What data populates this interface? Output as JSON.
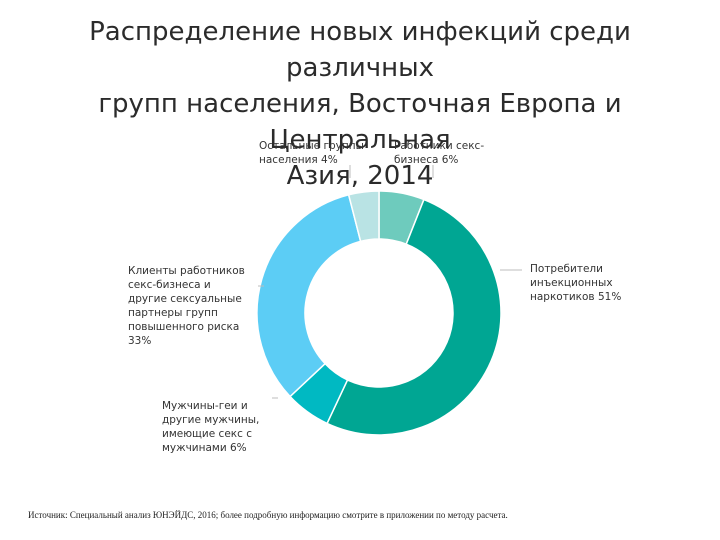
{
  "title_lines": [
    "Распределение новых инфекций среди различных",
    "групп населения, Восточная Европа и Центральная",
    "Азия, 2014"
  ],
  "chart_data": {
    "type": "pie",
    "donut": true,
    "title": "Распределение новых инфекций среди различных групп населения, Восточная Европа и Центральная Азия, 2014",
    "start_angle_deg": 0,
    "direction": "clockwise",
    "slices": [
      {
        "label": "Работники секс-\nбизнеса 6%",
        "value": 6,
        "color": "#6ecbbd"
      },
      {
        "label": "Потребители\nинъекционных\nнаркотиков 51%",
        "value": 51,
        "color": "#00a693"
      },
      {
        "label": "Мужчины-геи и\nдругие мужчины,\nимеющие секс с\nмужчинами 6%",
        "value": 6,
        "color": "#00b9c2"
      },
      {
        "label": "Клиенты работников\nсекс-бизнеса и\nдругие сексуальные\nпартнеры групп\nповышенного риска\n33%",
        "value": 33,
        "color": "#5ccdf5"
      },
      {
        "label": "Остальные группы\nнаселения 4%",
        "value": 4,
        "color": "#b9e3e4"
      }
    ],
    "legend": "none"
  },
  "source": "Источник: Специальный анализ ЮНЭЙДС, 2016; более подробную информацию смотрите в приложении по методу расчета."
}
